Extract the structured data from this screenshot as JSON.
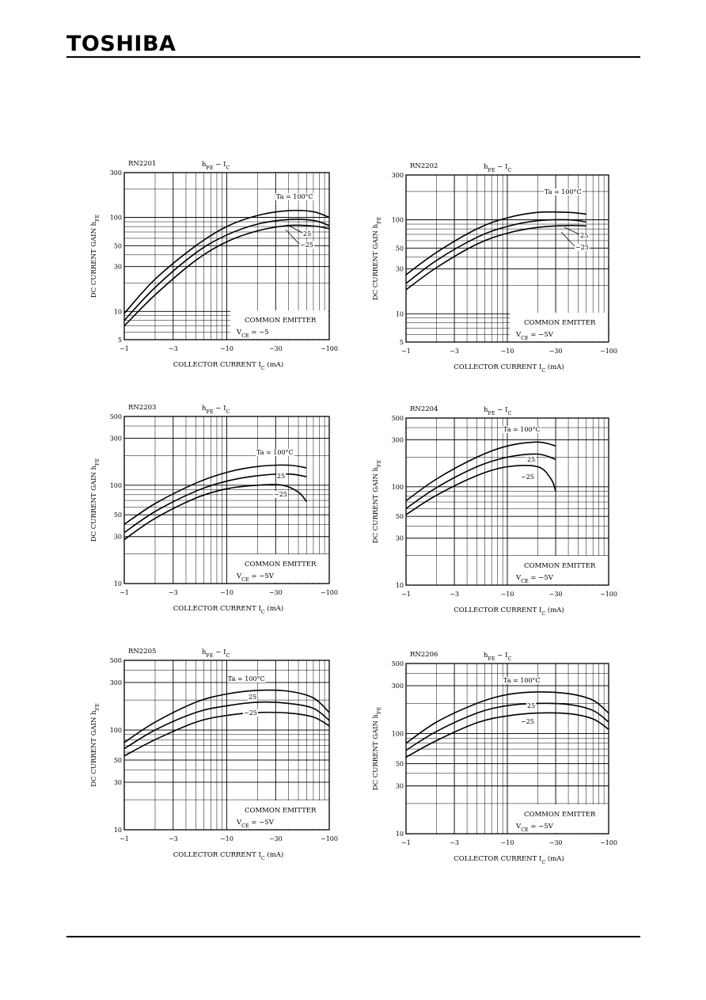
{
  "header": {
    "brand": "TOSHIBA"
  },
  "chart_data": [
    {
      "type": "line",
      "model": "RN2201",
      "title_main": "h",
      "title_sub1": "FE",
      "title_dash": " − I",
      "title_sub2": "C",
      "ylabel": "DC CURRENT GAIN",
      "ylabel_sym": "h",
      "ylabel_sub": "FE",
      "xlabel": "COLLECTOR CURRENT",
      "xlabel_sym": "I",
      "xlabel_sub": "C",
      "xlabel_unit": "(mA)",
      "xscale": "log",
      "yscale": "log",
      "xlim": [
        -1,
        -100
      ],
      "ylim": [
        5,
        300
      ],
      "xticks": [
        {
          "v": 1,
          "t": "−1"
        },
        {
          "v": 3,
          "t": "−3"
        },
        {
          "v": 10,
          "t": "−10"
        },
        {
          "v": 30,
          "t": "−30"
        },
        {
          "v": 100,
          "t": "−100"
        }
      ],
      "yticks": [
        {
          "v": 5,
          "t": "5"
        },
        {
          "v": 10,
          "t": "10"
        },
        {
          "v": 30,
          "t": "30"
        },
        {
          "v": 50,
          "t": "50"
        },
        {
          "v": 100,
          "t": "100"
        },
        {
          "v": 300,
          "t": "300"
        }
      ],
      "note_line1": "COMMON EMITTER",
      "note_line2_pre": "V",
      "note_line2_sub": "CE",
      "note_line2_post": " = −5",
      "series": [
        {
          "name": "Ta = 100°C",
          "x": [
            -1,
            -2,
            -5,
            -10,
            -20,
            -40,
            -70,
            -100
          ],
          "y": [
            9.5,
            22,
            50,
            80,
            105,
            118,
            115,
            100
          ]
        },
        {
          "name": "25",
          "x": [
            -1,
            -2,
            -5,
            -10,
            -20,
            -40,
            -70,
            -100
          ],
          "y": [
            8,
            18,
            42,
            65,
            85,
            95,
            93,
            82
          ]
        },
        {
          "name": "−25",
          "x": [
            -1,
            -2,
            -5,
            -10,
            -20,
            -40,
            -70,
            -100
          ],
          "y": [
            7,
            15,
            35,
            55,
            72,
            82,
            81,
            76
          ]
        }
      ]
    },
    {
      "type": "line",
      "model": "RN2202",
      "title_main": "h",
      "title_sub1": "FE",
      "title_dash": " − I",
      "title_sub2": "C",
      "ylabel": "DC CURRENT GAIN",
      "ylabel_sym": "h",
      "ylabel_sub": "FE",
      "xlabel": "COLLECTOR CURRENT",
      "xlabel_sym": "I",
      "xlabel_sub": "C",
      "xlabel_unit": "(mA)",
      "xscale": "log",
      "yscale": "log",
      "xlim": [
        -1,
        -100
      ],
      "ylim": [
        5,
        300
      ],
      "xticks": [
        {
          "v": 1,
          "t": "−1"
        },
        {
          "v": 3,
          "t": "−3"
        },
        {
          "v": 10,
          "t": "−10"
        },
        {
          "v": 30,
          "t": "−30"
        },
        {
          "v": 100,
          "t": "−100"
        }
      ],
      "yticks": [
        {
          "v": 5,
          "t": "5"
        },
        {
          "v": 10,
          "t": "10"
        },
        {
          "v": 30,
          "t": "30"
        },
        {
          "v": 50,
          "t": "50"
        },
        {
          "v": 100,
          "t": "100"
        },
        {
          "v": 300,
          "t": "300"
        }
      ],
      "note_line1": "COMMON EMITTER",
      "note_line2_pre": "V",
      "note_line2_sub": "CE",
      "note_line2_post": " = −5V",
      "series": [
        {
          "name": "Ta = 100°C",
          "x": [
            -1,
            -2,
            -5,
            -10,
            -20,
            -40,
            -60
          ],
          "y": [
            26,
            45,
            80,
            105,
            120,
            120,
            115
          ]
        },
        {
          "name": "25",
          "x": [
            -1,
            -2,
            -5,
            -10,
            -20,
            -40,
            -60
          ],
          "y": [
            21,
            37,
            65,
            85,
            98,
            100,
            95
          ]
        },
        {
          "name": "−25",
          "x": [
            -1,
            -2,
            -5,
            -10,
            -20,
            -40,
            -60
          ],
          "y": [
            18,
            31,
            55,
            72,
            83,
            87,
            86
          ]
        }
      ]
    },
    {
      "type": "line",
      "model": "RN2203",
      "title_main": "h",
      "title_sub1": "FE",
      "title_dash": " − I",
      "title_sub2": "C",
      "ylabel": "DC CURRENT GAIN",
      "ylabel_sym": "h",
      "ylabel_sub": "FE",
      "xlabel": "COLLECTOR CURRENT",
      "xlabel_sym": "I",
      "xlabel_sub": "C",
      "xlabel_unit": "(mA)",
      "xscale": "log",
      "yscale": "log",
      "xlim": [
        -1,
        -100
      ],
      "ylim": [
        10,
        500
      ],
      "xticks": [
        {
          "v": 1,
          "t": "−1"
        },
        {
          "v": 3,
          "t": "−3"
        },
        {
          "v": 10,
          "t": "−10"
        },
        {
          "v": 30,
          "t": "−30"
        },
        {
          "v": 100,
          "t": "−100"
        }
      ],
      "yticks": [
        {
          "v": 10,
          "t": "10"
        },
        {
          "v": 30,
          "t": "30"
        },
        {
          "v": 50,
          "t": "50"
        },
        {
          "v": 100,
          "t": "100"
        },
        {
          "v": 300,
          "t": "300"
        },
        {
          "v": 500,
          "t": "500"
        }
      ],
      "note_line1": "COMMON EMITTER",
      "note_line2_pre": "V",
      "note_line2_sub": "CE",
      "note_line2_post": " = −5V",
      "series": [
        {
          "name": "Ta = 100°C",
          "x": [
            -1,
            -2,
            -5,
            -10,
            -20,
            -40,
            -60
          ],
          "y": [
            40,
            65,
            105,
            135,
            155,
            160,
            150
          ]
        },
        {
          "name": "25",
          "x": [
            -1,
            -2,
            -5,
            -10,
            -20,
            -40,
            -60
          ],
          "y": [
            33,
            54,
            87,
            110,
            125,
            130,
            122
          ]
        },
        {
          "name": "−25",
          "x": [
            -1,
            -2,
            -5,
            -10,
            -20,
            -35,
            -50,
            -60
          ],
          "y": [
            28,
            46,
            74,
            92,
            100,
            100,
            85,
            68
          ]
        }
      ]
    },
    {
      "type": "line",
      "model": "RN2204",
      "title_main": "h",
      "title_sub1": "FE",
      "title_dash": " − I",
      "title_sub2": "C",
      "ylabel": "DC CURRENT GAIN",
      "ylabel_sym": "h",
      "ylabel_sub": "FE",
      "xlabel": "COLLECTOR CURRENT",
      "xlabel_sym": "I",
      "xlabel_sub": "C",
      "xlabel_unit": "(mA)",
      "xscale": "log",
      "yscale": "log",
      "xlim": [
        -1,
        -100
      ],
      "ylim": [
        10,
        500
      ],
      "xticks": [
        {
          "v": 1,
          "t": "−1"
        },
        {
          "v": 3,
          "t": "−3"
        },
        {
          "v": 10,
          "t": "−10"
        },
        {
          "v": 30,
          "t": "−30"
        },
        {
          "v": 100,
          "t": "−100"
        }
      ],
      "yticks": [
        {
          "v": 10,
          "t": "10"
        },
        {
          "v": 30,
          "t": "30"
        },
        {
          "v": 50,
          "t": "50"
        },
        {
          "v": 100,
          "t": "100"
        },
        {
          "v": 300,
          "t": "300"
        },
        {
          "v": 500,
          "t": "500"
        }
      ],
      "note_line1": "COMMON EMITTER",
      "note_line2_pre": "V",
      "note_line2_sub": "CE",
      "note_line2_post": " = −5V",
      "series": [
        {
          "name": "Ta = 100°C",
          "x": [
            -1,
            -2,
            -5,
            -10,
            -20,
            -30
          ],
          "y": [
            72,
            120,
            200,
            260,
            285,
            260
          ]
        },
        {
          "name": "25",
          "x": [
            -1,
            -2,
            -5,
            -10,
            -20,
            -30
          ],
          "y": [
            60,
            98,
            160,
            200,
            215,
            190
          ]
        },
        {
          "name": "−25",
          "x": [
            -1,
            -2,
            -5,
            -10,
            -20,
            -27,
            -30
          ],
          "y": [
            52,
            82,
            130,
            160,
            160,
            120,
            90
          ]
        }
      ]
    },
    {
      "type": "line",
      "model": "RN2205",
      "title_main": "h",
      "title_sub1": "FE",
      "title_dash": " − I",
      "title_sub2": "C",
      "ylabel": "DC CURRENT GAIN",
      "ylabel_sym": "h",
      "ylabel_sub": "FE",
      "xlabel": "COLLECTOR CURRENT",
      "xlabel_sym": "I",
      "xlabel_sub": "C",
      "xlabel_unit": "(mA)",
      "xscale": "log",
      "yscale": "log",
      "xlim": [
        -1,
        -100
      ],
      "ylim": [
        10,
        500
      ],
      "xticks": [
        {
          "v": 1,
          "t": "−1"
        },
        {
          "v": 3,
          "t": "−3"
        },
        {
          "v": 10,
          "t": "−10"
        },
        {
          "v": 30,
          "t": "−30"
        },
        {
          "v": 100,
          "t": "−100"
        }
      ],
      "yticks": [
        {
          "v": 10,
          "t": "10"
        },
        {
          "v": 30,
          "t": "30"
        },
        {
          "v": 50,
          "t": "50"
        },
        {
          "v": 100,
          "t": "100"
        },
        {
          "v": 300,
          "t": "300"
        },
        {
          "v": 500,
          "t": "500"
        }
      ],
      "note_line1": "COMMON EMITTER",
      "note_line2_pre": "V",
      "note_line2_sub": "CE",
      "note_line2_post": " = −5V",
      "series": [
        {
          "name": "Ta = 100°C",
          "x": [
            -1,
            -2,
            -5,
            -10,
            -20,
            -40,
            -70,
            -100
          ],
          "y": [
            75,
            120,
            190,
            230,
            250,
            245,
            210,
            150
          ]
        },
        {
          "name": "25",
          "x": [
            -1,
            -2,
            -5,
            -10,
            -20,
            -40,
            -70,
            -100
          ],
          "y": [
            65,
            100,
            150,
            175,
            190,
            185,
            165,
            125
          ]
        },
        {
          "name": "−25",
          "x": [
            -1,
            -2,
            -5,
            -10,
            -20,
            -40,
            -70,
            -100
          ],
          "y": [
            55,
            80,
            120,
            140,
            150,
            148,
            135,
            110
          ]
        }
      ]
    },
    {
      "type": "line",
      "model": "RN2206",
      "title_main": "h",
      "title_sub1": "FE",
      "title_dash": " − I",
      "title_sub2": "C",
      "ylabel": "DC CURRENT GAIN",
      "ylabel_sym": "h",
      "ylabel_sub": "FE",
      "xlabel": "COLLECTOR CURRENT",
      "xlabel_sym": "I",
      "xlabel_sub": "C",
      "xlabel_unit": "(mA)",
      "xscale": "log",
      "yscale": "log",
      "xlim": [
        -1,
        -100
      ],
      "ylim": [
        10,
        500
      ],
      "xticks": [
        {
          "v": 1,
          "t": "−1"
        },
        {
          "v": 3,
          "t": "−3"
        },
        {
          "v": 10,
          "t": "−10"
        },
        {
          "v": 30,
          "t": "−30"
        },
        {
          "v": 100,
          "t": "−100"
        }
      ],
      "yticks": [
        {
          "v": 10,
          "t": "10"
        },
        {
          "v": 30,
          "t": "30"
        },
        {
          "v": 50,
          "t": "50"
        },
        {
          "v": 100,
          "t": "100"
        },
        {
          "v": 300,
          "t": "300"
        },
        {
          "v": 500,
          "t": "500"
        }
      ],
      "note_line1": "COMMON EMITTER",
      "note_line2_pre": "V",
      "note_line2_sub": "CE",
      "note_line2_post": " = −5V",
      "series": [
        {
          "name": "Ta = 100°C",
          "x": [
            -1,
            -2,
            -5,
            -10,
            -20,
            -40,
            -70,
            -100
          ],
          "y": [
            80,
            130,
            200,
            245,
            260,
            250,
            215,
            160
          ]
        },
        {
          "name": "25",
          "x": [
            -1,
            -2,
            -5,
            -10,
            -20,
            -40,
            -70,
            -100
          ],
          "y": [
            68,
            105,
            160,
            190,
            200,
            195,
            170,
            130
          ]
        },
        {
          "name": "−25",
          "x": [
            -1,
            -2,
            -5,
            -10,
            -20,
            -40,
            -70,
            -100
          ],
          "y": [
            58,
            85,
            128,
            150,
            160,
            158,
            140,
            110
          ]
        }
      ]
    }
  ]
}
